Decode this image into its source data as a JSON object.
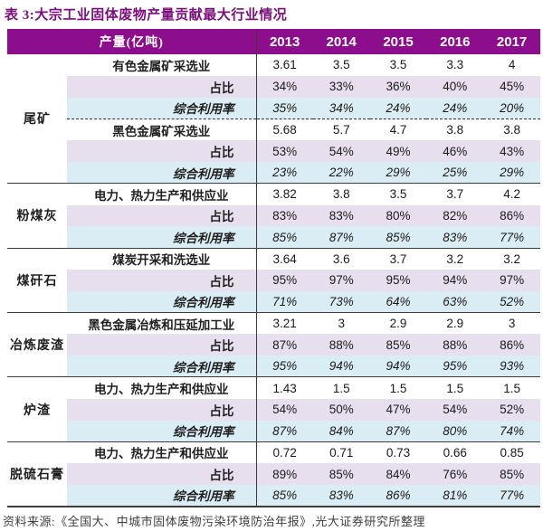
{
  "title": "表 3:大宗工业固体废物产量贡献最大行业情况",
  "header": {
    "label": "产量(亿吨)",
    "years": [
      "2013",
      "2014",
      "2015",
      "2016",
      "2017"
    ]
  },
  "row_labels": {
    "share": "占比",
    "utilization": "综合利用率"
  },
  "groups": [
    {
      "name": "尾矿",
      "subs": [
        {
          "industry": "有色金属矿采选业",
          "production": [
            "3.61",
            "3.5",
            "3.5",
            "3.3",
            "4"
          ],
          "share": [
            "34%",
            "33%",
            "36%",
            "40%",
            "45%"
          ],
          "utilization": [
            "35%",
            "34%",
            "24%",
            "24%",
            "20%"
          ]
        },
        {
          "industry": "黑色金属矿采选业",
          "production": [
            "5.68",
            "5.7",
            "4.7",
            "3.8",
            "3.8"
          ],
          "share": [
            "53%",
            "54%",
            "49%",
            "46%",
            "43%"
          ],
          "utilization": [
            "23%",
            "22%",
            "29%",
            "25%",
            "29%"
          ]
        }
      ]
    },
    {
      "name": "粉煤灰",
      "subs": [
        {
          "industry": "电力、热力生产和供应业",
          "production": [
            "3.82",
            "3.8",
            "3.5",
            "3.7",
            "4.2"
          ],
          "share": [
            "83%",
            "83%",
            "80%",
            "82%",
            "86%"
          ],
          "utilization": [
            "85%",
            "87%",
            "85%",
            "83%",
            "77%"
          ]
        }
      ]
    },
    {
      "name": "煤矸石",
      "subs": [
        {
          "industry": "煤炭开采和洗选业",
          "production": [
            "3.64",
            "3.6",
            "3.7",
            "3.2",
            "3.2"
          ],
          "share": [
            "95%",
            "97%",
            "95%",
            "94%",
            "97%"
          ],
          "utilization": [
            "71%",
            "73%",
            "64%",
            "63%",
            "52%"
          ]
        }
      ]
    },
    {
      "name": "冶炼废渣",
      "subs": [
        {
          "industry": "黑色金属冶炼和压延加工业",
          "production": [
            "3.21",
            "3",
            "2.9",
            "2.9",
            "3"
          ],
          "share": [
            "87%",
            "88%",
            "85%",
            "88%",
            "86%"
          ],
          "utilization": [
            "95%",
            "94%",
            "94%",
            "95%",
            "93%"
          ]
        }
      ]
    },
    {
      "name": "炉渣",
      "subs": [
        {
          "industry": "电力、热力生产和供应业",
          "production": [
            "1.43",
            "1.5",
            "1.5",
            "1.5",
            "1.5"
          ],
          "share": [
            "54%",
            "50%",
            "47%",
            "54%",
            "52%"
          ],
          "utilization": [
            "87%",
            "84%",
            "87%",
            "80%",
            "74%"
          ]
        }
      ]
    },
    {
      "name": "脱硫石膏",
      "subs": [
        {
          "industry": "电力、热力生产和供应业",
          "production": [
            "0.72",
            "0.71",
            "0.73",
            "0.66",
            "0.85"
          ],
          "share": [
            "89%",
            "85%",
            "84%",
            "76%",
            "85%"
          ],
          "utilization": [
            "85%",
            "83%",
            "86%",
            "81%",
            "77%"
          ]
        }
      ]
    }
  ],
  "footer": "资料来源:《全国大、中城市固体废物污染环境防治年报》,光大证券研究所整理",
  "colors": {
    "header_bg": "#8C0E8C",
    "header_text": "#FFFFFF",
    "title_text": "#7B0D7B",
    "share_row_bg": "#E7DFEE",
    "utilization_row_bg": "#DBEDF4",
    "body_text": "#1F1F1F",
    "separator_line": "#3D3D3D"
  }
}
